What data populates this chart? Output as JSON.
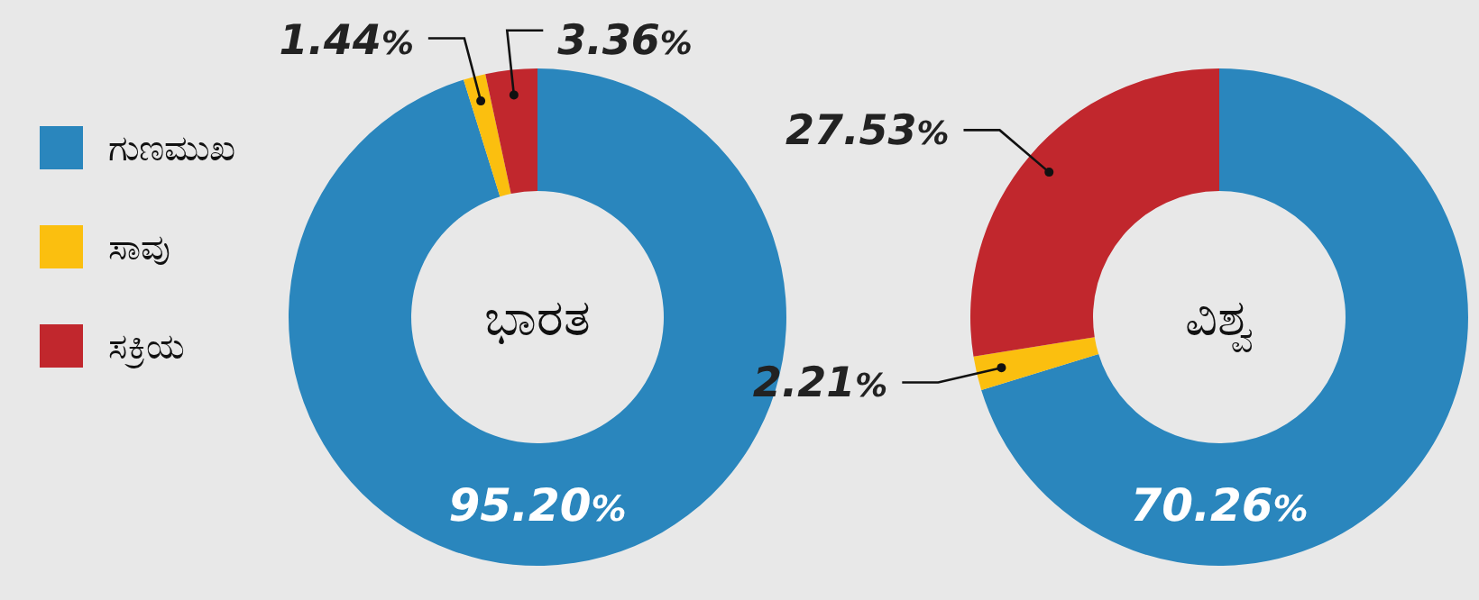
{
  "chart_data": [
    {
      "type": "donut",
      "title": "ಭಾರತ",
      "categories": [
        "ಗುಣಮುಖ",
        "ಸಾವು",
        "ಸಕ್ರಿಯ"
      ],
      "values": [
        95.2,
        1.44,
        3.36
      ],
      "colors": [
        "#2a86bd",
        "#fbbf0f",
        "#c1272d"
      ],
      "value_labels": [
        "95.20%",
        "1.44%",
        "3.36%"
      ],
      "legend": "left"
    },
    {
      "type": "donut",
      "title": "ವಿಶ್ವ",
      "values": [
        70.26,
        2.21,
        27.53
      ],
      "colors": [
        "#2a86bd",
        "#fbbf0f",
        "#c1272d"
      ],
      "value_labels": [
        "70.26%",
        "2.21%",
        "27.53%"
      ],
      "legend": false
    }
  ]
}
